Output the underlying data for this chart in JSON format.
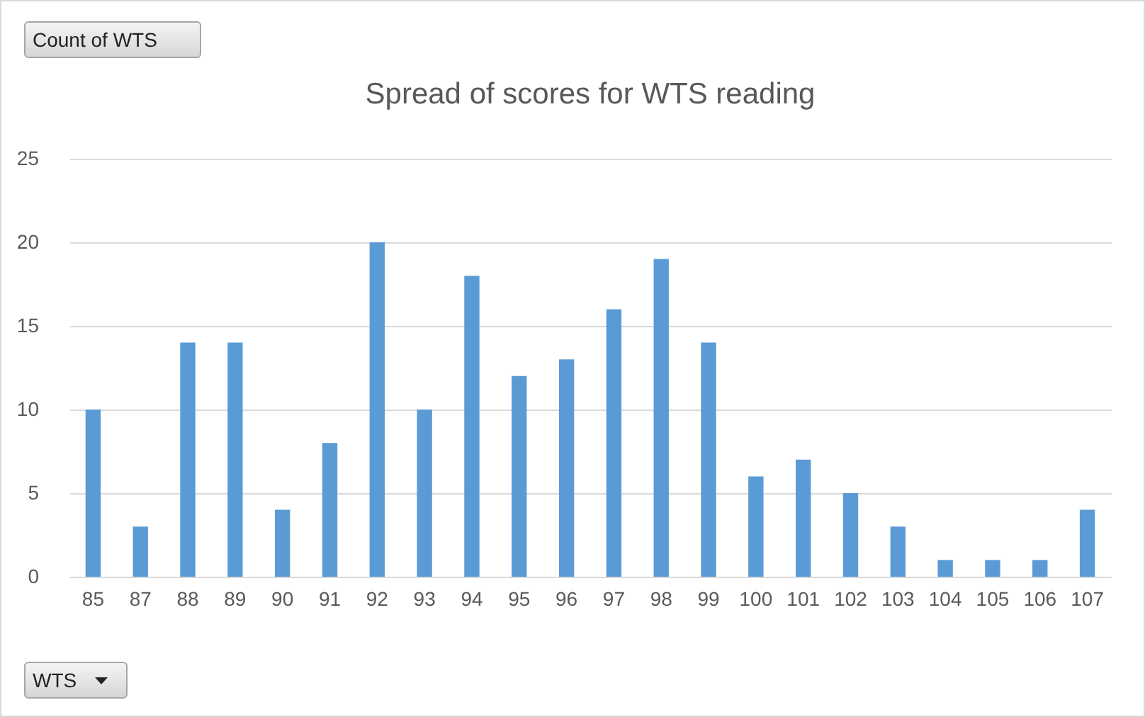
{
  "chart_data": {
    "type": "bar",
    "title": "Spread of scores for WTS reading",
    "categories": [
      "85",
      "87",
      "88",
      "89",
      "90",
      "91",
      "92",
      "93",
      "94",
      "95",
      "96",
      "97",
      "98",
      "99",
      "100",
      "101",
      "102",
      "103",
      "104",
      "105",
      "106",
      "107"
    ],
    "values": [
      10,
      3,
      14,
      14,
      4,
      8,
      20,
      10,
      18,
      12,
      13,
      16,
      19,
      14,
      6,
      7,
      5,
      3,
      1,
      1,
      1,
      4
    ],
    "color": "#5b9bd5",
    "ylim": [
      0,
      25
    ],
    "yticks": [
      0,
      5,
      10,
      15,
      20,
      25
    ],
    "grid": "y",
    "annotations": [
      "Count of WTS",
      "WTS"
    ]
  }
}
